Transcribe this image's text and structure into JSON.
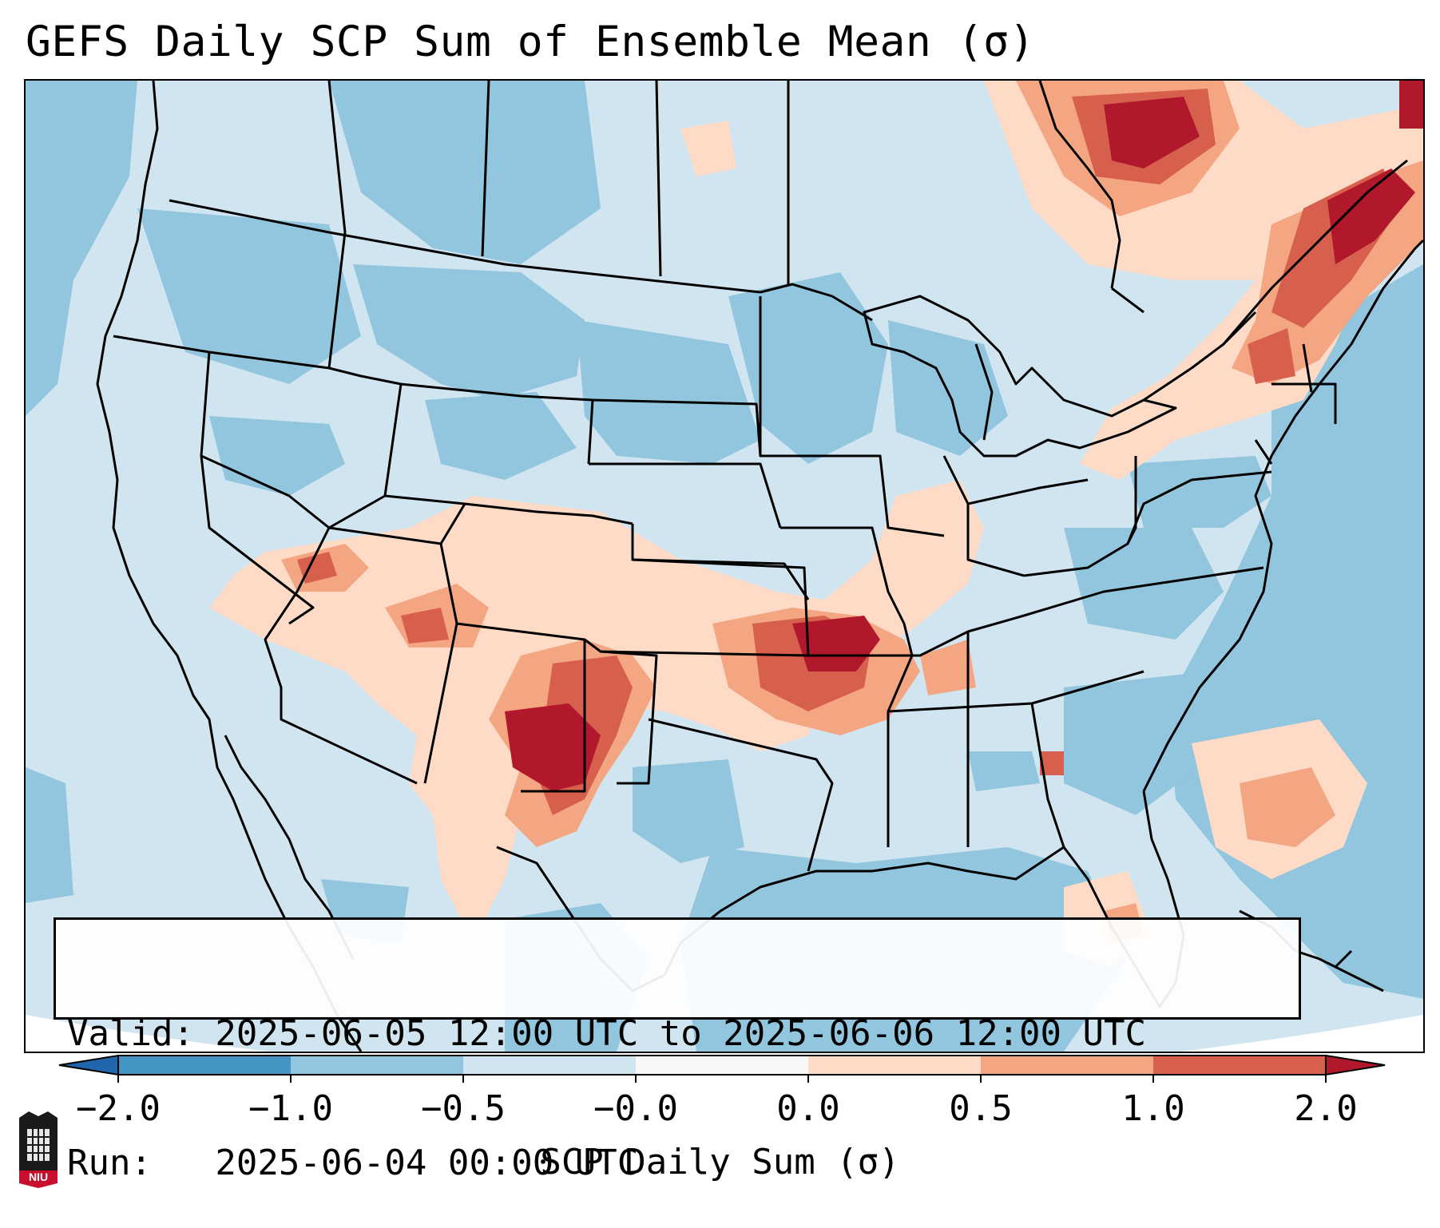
{
  "title": "GEFS Daily SCP Sum of Ensemble Mean (σ)",
  "info": {
    "valid": "Valid: 2025-06-05 12:00 UTC to 2025-06-06 12:00 UTC",
    "run": "Run:   2025-06-04 00:00 UTC"
  },
  "colorbar": {
    "label": "SCP Daily Sum (σ)",
    "ticks": [
      "−2.0",
      "−1.0",
      "−0.5",
      "−0.0",
      "0.0",
      "0.5",
      "1.0",
      "2.0"
    ],
    "bins": [
      {
        "range": "-2.0 to -1.0",
        "color": "#4393c3"
      },
      {
        "range": "-1.0 to -0.5",
        "color": "#92c5de"
      },
      {
        "range": "-0.5 to -0.0",
        "color": "#d1e5f0"
      },
      {
        "range": "-0.0 to 0.0",
        "color": "#f7f7f7"
      },
      {
        "range": "0.0 to 0.5",
        "color": "#fddbc7"
      },
      {
        "range": "0.5 to 1.0",
        "color": "#f4a582"
      },
      {
        "range": "1.0 to 2.0",
        "color": "#d6604d"
      }
    ],
    "extend_low_color": "#2166ac",
    "extend_high_color": "#b2182b"
  },
  "logo": {
    "text": "NIU",
    "color": "#c8102e"
  }
}
